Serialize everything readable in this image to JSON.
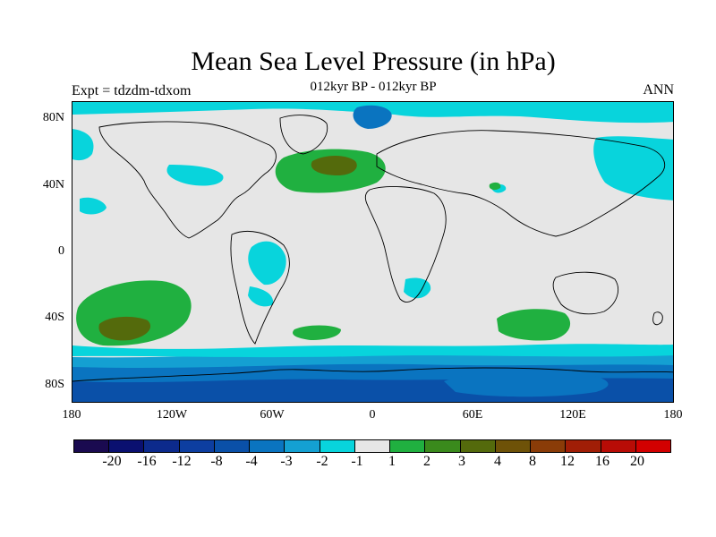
{
  "figure": {
    "title": "Mean Sea Level Pressure (in hPa)",
    "subtitle": "012kyr BP - 012kyr BP",
    "experiment": "Expt = tdzdm-tdxom",
    "season": "ANN"
  },
  "axes": {
    "lat_labels": [
      "80N",
      "40N",
      "0",
      "40S",
      "80S"
    ],
    "lon_labels": [
      "180",
      "120W",
      "60W",
      "0",
      "60E",
      "120E",
      "180"
    ]
  },
  "colorbar": {
    "colors": [
      "#1a0a50",
      "#0a1070",
      "#0c2a8c",
      "#0d3ea0",
      "#0a50a8",
      "#0a74c0",
      "#14a0d2",
      "#08d4dc",
      "#e6e6e6",
      "#20b040",
      "#3a8a1c",
      "#546a0c",
      "#6e5208",
      "#8a3c08",
      "#a01e06",
      "#b80c06",
      "#d20000"
    ],
    "labels": [
      "-20",
      "-16",
      "-12",
      "-8",
      "-4",
      "-3",
      "-2",
      "-1",
      "1",
      "2",
      "3",
      "4",
      "8",
      "12",
      "16",
      "20"
    ]
  },
  "map_colors": {
    "ocean_neutral": "#e6e6e6",
    "cyan": "#08d4dc",
    "light_blue": "#14a0d2",
    "mid_blue": "#0a74c0",
    "dark_blue": "#0a50a8",
    "green": "#20b040",
    "dark_green": "#546a0c",
    "coast": "#000000"
  }
}
